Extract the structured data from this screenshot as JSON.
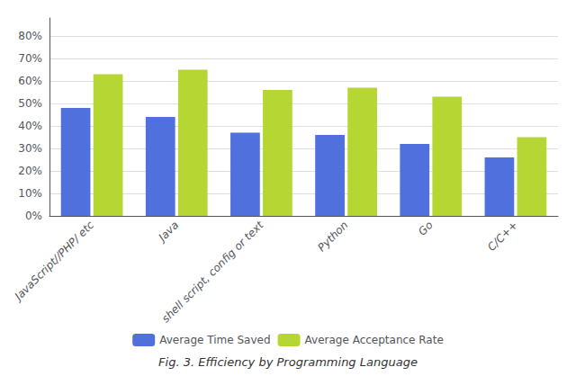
{
  "chart_data": {
    "type": "bar",
    "title": "Fig. 3. Efficiency by Programming Language",
    "categories": [
      "JavaScript//PHP/ etc",
      "Java",
      "shell script, config or text",
      "Python",
      "Go",
      "C/C++"
    ],
    "series": [
      {
        "name": "Average Time Saved",
        "values": [
          0.48,
          0.44,
          0.37,
          0.36,
          0.32,
          0.26
        ]
      },
      {
        "name": "Average Acceptance Rate",
        "values": [
          0.63,
          0.65,
          0.56,
          0.57,
          0.53,
          0.35
        ]
      }
    ],
    "ylim": [
      0,
      0.88
    ],
    "yticks": [
      {
        "value": 0.0,
        "label": "0%"
      },
      {
        "value": 0.1,
        "label": "10%"
      },
      {
        "value": 0.2,
        "label": "20%"
      },
      {
        "value": 0.3,
        "label": "30%"
      },
      {
        "value": 0.4,
        "label": "40%"
      },
      {
        "value": 0.5,
        "label": "50%"
      },
      {
        "value": 0.6,
        "label": "60%"
      },
      {
        "value": 0.7,
        "label": "70%"
      },
      {
        "value": 0.8,
        "label": "80%"
      }
    ],
    "grid": true,
    "legend": "bottom"
  }
}
